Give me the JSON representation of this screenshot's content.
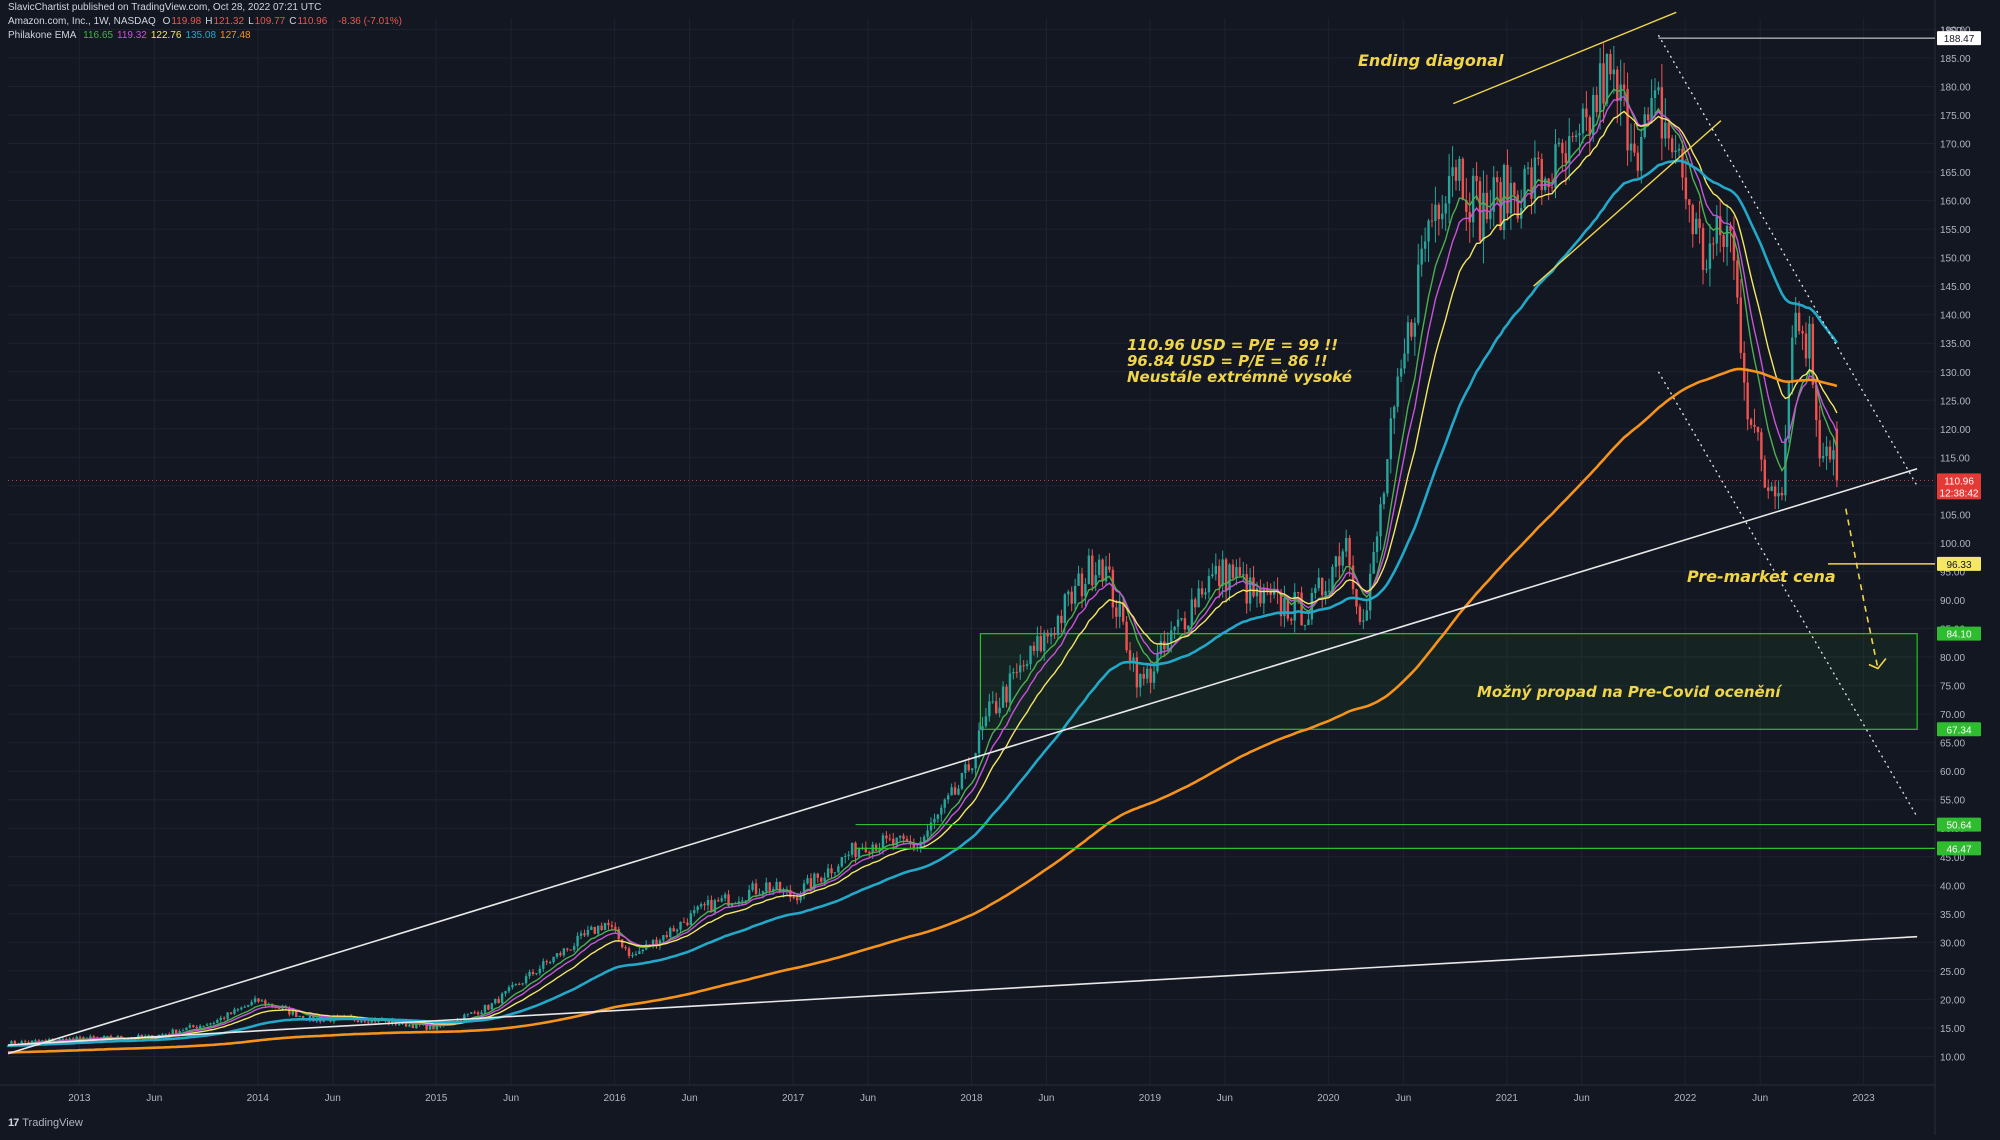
{
  "header": {
    "publisher": "SlavicChartist published on TradingView.com, Oct 28, 2022 07:21 UTC",
    "symbol": "Amazon.com, Inc., 1W, NASDAQ",
    "ohlc": [
      {
        "k": "O",
        "v": "119.98"
      },
      {
        "k": "H",
        "v": "121.32"
      },
      {
        "k": "L",
        "v": "109.77"
      },
      {
        "k": "C",
        "v": "110.96"
      }
    ],
    "change": "-8.36 (-7.01%)",
    "indicator_name": "Philakone EMA",
    "indicator_values": [
      {
        "v": "116.65",
        "color": "#4caf50"
      },
      {
        "v": "119.32",
        "color": "#c654d8"
      },
      {
        "v": "122.76",
        "color": "#f5e663"
      },
      {
        "v": "135.08",
        "color": "#22a9c9"
      },
      {
        "v": "127.48",
        "color": "#f7931a"
      }
    ]
  },
  "footer": {
    "brand": "TradingView",
    "logo": "17"
  },
  "currency_label": "USD",
  "annotations": {
    "ending_diagonal": "Ending diagonal",
    "pe_line1": "110.96 USD = P/E = 99 !!",
    "pe_line2": "96.84 USD = P/E = 86 !!",
    "pe_line3": "Neustále extrémně vysoké",
    "premarket": "Pre-market cena",
    "covid": "Možný propad na Pre-Covid ocenění"
  },
  "colors": {
    "background": "#131722",
    "up": "#26a69a",
    "down": "#ef5350",
    "ema_green": "#4caf50",
    "ema_purple": "#c654d8",
    "ema_yellow": "#f5e663",
    "ema_cyan": "#22a9c9",
    "ema_orange": "#f7931a",
    "annotation": "#f0d54a",
    "zone": "#2ebd2e"
  },
  "chart_data": {
    "type": "candlestick",
    "title": "Amazon.com, Inc., 1W, NASDAQ",
    "ylabel": "USD",
    "ylim": [
      5,
      192
    ],
    "xlim": [
      2012.6,
      2023.4
    ],
    "x_ticks": [
      {
        "t": 2013.0,
        "label": "2013"
      },
      {
        "t": 2013.42,
        "label": "Jun"
      },
      {
        "t": 2014.0,
        "label": "2014"
      },
      {
        "t": 2014.42,
        "label": "Jun"
      },
      {
        "t": 2015.0,
        "label": "2015"
      },
      {
        "t": 2015.42,
        "label": "Jun"
      },
      {
        "t": 2016.0,
        "label": "2016"
      },
      {
        "t": 2016.42,
        "label": "Jun"
      },
      {
        "t": 2017.0,
        "label": "2017"
      },
      {
        "t": 2017.42,
        "label": "Jun"
      },
      {
        "t": 2018.0,
        "label": "2018"
      },
      {
        "t": 2018.42,
        "label": "Jun"
      },
      {
        "t": 2019.0,
        "label": "2019"
      },
      {
        "t": 2019.42,
        "label": "Jun"
      },
      {
        "t": 2020.0,
        "label": "2020"
      },
      {
        "t": 2020.42,
        "label": "Jun"
      },
      {
        "t": 2021.0,
        "label": "2021"
      },
      {
        "t": 2021.42,
        "label": "Jun"
      },
      {
        "t": 2022.0,
        "label": "2022"
      },
      {
        "t": 2022.42,
        "label": "Jun"
      },
      {
        "t": 2023.0,
        "label": "2023"
      }
    ],
    "y_ticks": [
      10,
      15,
      20,
      25,
      30,
      35,
      40,
      45,
      50,
      55,
      60,
      65,
      70,
      75,
      80,
      85,
      90,
      95,
      100,
      105,
      110,
      115,
      120,
      125,
      130,
      135,
      140,
      145,
      150,
      155,
      160,
      165,
      170,
      175,
      180,
      185,
      190
    ],
    "price_path": [
      [
        2012.6,
        12.3
      ],
      [
        2013.0,
        13.1
      ],
      [
        2013.4,
        13.4
      ],
      [
        2013.75,
        16.0
      ],
      [
        2014.0,
        19.8
      ],
      [
        2014.3,
        16.5
      ],
      [
        2014.6,
        16.6
      ],
      [
        2015.0,
        15.0
      ],
      [
        2015.3,
        18.8
      ],
      [
        2015.6,
        26.0
      ],
      [
        2015.95,
        33.5
      ],
      [
        2016.1,
        27.5
      ],
      [
        2016.5,
        36.0
      ],
      [
        2016.85,
        40.0
      ],
      [
        2017.0,
        38.0
      ],
      [
        2017.4,
        47.5
      ],
      [
        2017.7,
        47.0
      ],
      [
        2017.95,
        58.0
      ],
      [
        2018.1,
        70.0
      ],
      [
        2018.45,
        85.0
      ],
      [
        2018.72,
        98.0
      ],
      [
        2018.95,
        75.0
      ],
      [
        2019.1,
        82.0
      ],
      [
        2019.3,
        93.0
      ],
      [
        2019.45,
        95.0
      ],
      [
        2019.6,
        90.0
      ],
      [
        2019.9,
        88.0
      ],
      [
        2020.1,
        101.0
      ],
      [
        2020.2,
        85.0
      ],
      [
        2020.35,
        118.0
      ],
      [
        2020.55,
        155.0
      ],
      [
        2020.7,
        168.0
      ],
      [
        2020.85,
        158.0
      ],
      [
        2021.05,
        162.0
      ],
      [
        2021.2,
        164.0
      ],
      [
        2021.4,
        168.0
      ],
      [
        2021.55,
        182.0
      ],
      [
        2021.75,
        170.0
      ],
      [
        2021.85,
        176.0
      ],
      [
        2021.95,
        168.0
      ],
      [
        2022.1,
        150.0
      ],
      [
        2022.25,
        155.0
      ],
      [
        2022.35,
        125.0
      ],
      [
        2022.45,
        110.0
      ],
      [
        2022.55,
        112.0
      ],
      [
        2022.6,
        140.0
      ],
      [
        2022.7,
        135.0
      ],
      [
        2022.75,
        118.0
      ],
      [
        2022.82,
        117.0
      ],
      [
        2022.86,
        110.96
      ]
    ],
    "ema_periods": [
      9,
      13,
      21,
      55,
      200
    ],
    "ema_last": [
      116.65,
      119.32,
      122.76,
      135.08,
      127.48
    ],
    "ema_colors": [
      "#4caf50",
      "#c654d8",
      "#f5e663",
      "#22a9c9",
      "#f7931a"
    ],
    "drawings": {
      "trendlines_white": [
        [
          [
            2012.6,
            10.5
          ],
          [
            2023.3,
            113.0
          ]
        ],
        [
          [
            2012.6,
            12.0
          ],
          [
            2023.3,
            31.0
          ]
        ]
      ],
      "diagonal_upper": [
        [
          2020.7,
          177.0
        ],
        [
          2021.95,
          193.0
        ]
      ],
      "diagonal_lower": [
        [
          2021.15,
          145.0
        ],
        [
          2022.2,
          174.0
        ]
      ],
      "channel_upper": [
        [
          2021.85,
          189.0
        ],
        [
          2023.3,
          110.0
        ]
      ],
      "channel_lower": [
        [
          2021.85,
          130.0
        ],
        [
          2023.3,
          52.0
        ]
      ],
      "ath_line": 188.47,
      "premarket_line": 96.33,
      "zone": {
        "top": 84.1,
        "bottom": 67.34,
        "from": 2018.05,
        "to": 2023.3
      },
      "support_lines": [
        50.64,
        46.47
      ],
      "dashed_arrow": [
        [
          2022.9,
          106.0
        ],
        [
          2023.0,
          90.0
        ],
        [
          2023.08,
          78.0
        ]
      ]
    },
    "price_badges": [
      {
        "value": 188.47,
        "label": "188.47",
        "bg": "#ffffff",
        "fg": "#131722"
      },
      {
        "value": 110.96,
        "label": "110.96",
        "sub": "12:38:42",
        "bg": "#e53935",
        "fg": "#ffffff"
      },
      {
        "value": 96.33,
        "label": "96.33",
        "bg": "#f5e663",
        "fg": "#131722"
      },
      {
        "value": 84.1,
        "label": "84.10",
        "bg": "#2ebd2e",
        "fg": "#ffffff"
      },
      {
        "value": 67.34,
        "label": "67.34",
        "bg": "#2ebd2e",
        "fg": "#ffffff"
      },
      {
        "value": 50.64,
        "label": "50.64",
        "bg": "#2ebd2e",
        "fg": "#ffffff"
      },
      {
        "value": 46.47,
        "label": "46.47",
        "bg": "#2ebd2e",
        "fg": "#ffffff"
      }
    ]
  }
}
